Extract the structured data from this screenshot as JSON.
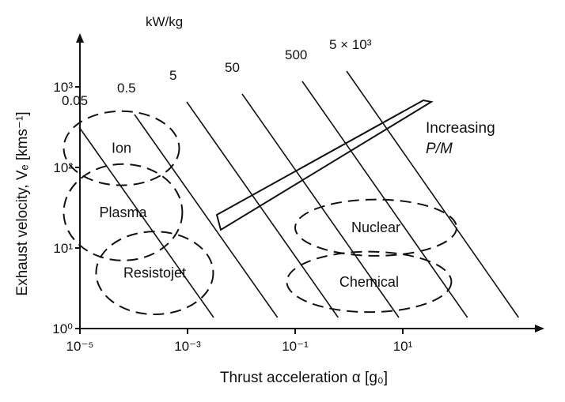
{
  "chart_data": {
    "type": "diagram-chart",
    "xlabel": "Thrust acceleration α [g₀]",
    "ylabel": "Exhaust velocity, Vₑ [kms⁻¹]",
    "x_scale": "log",
    "y_scale": "log",
    "xlim": [
      1e-05,
      1000
    ],
    "ylim": [
      1,
      5000
    ],
    "x_ticks": [
      {
        "value": 1e-05,
        "label": "10⁻⁵"
      },
      {
        "value": 0.001,
        "label": "10⁻³"
      },
      {
        "value": 0.1,
        "label": "10⁻¹"
      },
      {
        "value": 10,
        "label": "10¹"
      }
    ],
    "y_ticks": [
      {
        "value": 1,
        "label": "10⁰"
      },
      {
        "value": 10,
        "label": "10¹"
      },
      {
        "value": 100,
        "label": "10²"
      },
      {
        "value": 1000,
        "label": "10³"
      }
    ],
    "power_unit_label": "kW/kg",
    "power_lines": [
      {
        "label": "0.05",
        "value": 0.05
      },
      {
        "label": "0.5",
        "value": 0.5
      },
      {
        "label": "5",
        "value": 5
      },
      {
        "label": "50",
        "value": 50
      },
      {
        "label": "500",
        "value": 500
      },
      {
        "label": "5 × 10³",
        "value": 5000
      }
    ],
    "regions": [
      {
        "name": "Ion",
        "x_range": [
          5e-06,
          0.0007
        ],
        "y_range": [
          60,
          500
        ]
      },
      {
        "name": "Plasma",
        "x_range": [
          5e-06,
          0.0008
        ],
        "y_range": [
          7,
          110
        ]
      },
      {
        "name": "Resistojet",
        "x_range": [
          2e-05,
          0.003
        ],
        "y_range": [
          1.5,
          16
        ]
      },
      {
        "name": "Nuclear",
        "x_range": [
          0.1,
          100
        ],
        "y_range": [
          8,
          40
        ]
      },
      {
        "name": "Chemical",
        "x_range": [
          0.07,
          80
        ],
        "y_range": [
          1.6,
          9
        ]
      }
    ],
    "annotation": {
      "line1": "Increasing",
      "line2": "P/M"
    }
  }
}
